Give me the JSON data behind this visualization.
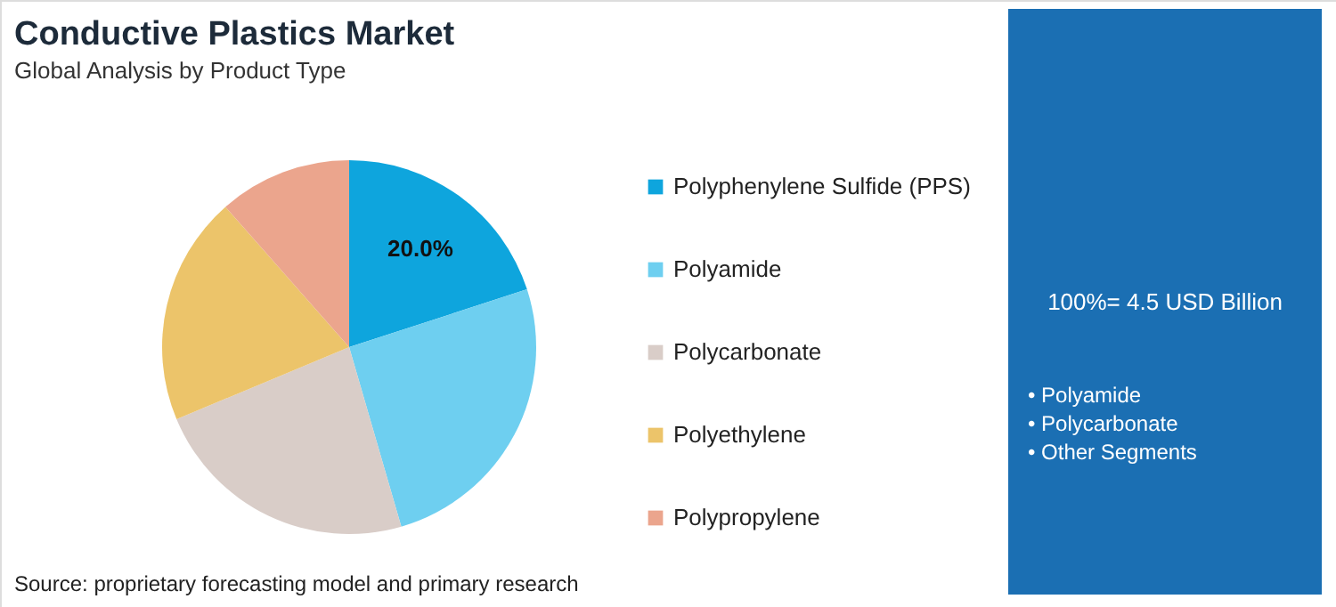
{
  "chart_data": {
    "type": "pie",
    "title": "Conductive Plastics Market",
    "subtitle": "Global Analysis by Product Type",
    "categories": [
      "Polyphenylene Sulfide (PPS)",
      "Polyamide",
      "Polycarbonate",
      "Polyethylene",
      "Polypropylene"
    ],
    "values": [
      20.0,
      25.5,
      23.2,
      19.8,
      11.5
    ],
    "colors": [
      "#0ea5dd",
      "#6ecff0",
      "#d9cdc8",
      "#ecc46a",
      "#eba58d"
    ],
    "value_labels": [
      "20.0%",
      null,
      null,
      null,
      null
    ],
    "legend": "right",
    "annotations": [
      "100%= 4.5 USD Billion",
      "• Polyamide",
      "• Polycarbonate",
      "• Other Segments",
      "Source: proprietary forecasting model and primary research"
    ]
  }
}
